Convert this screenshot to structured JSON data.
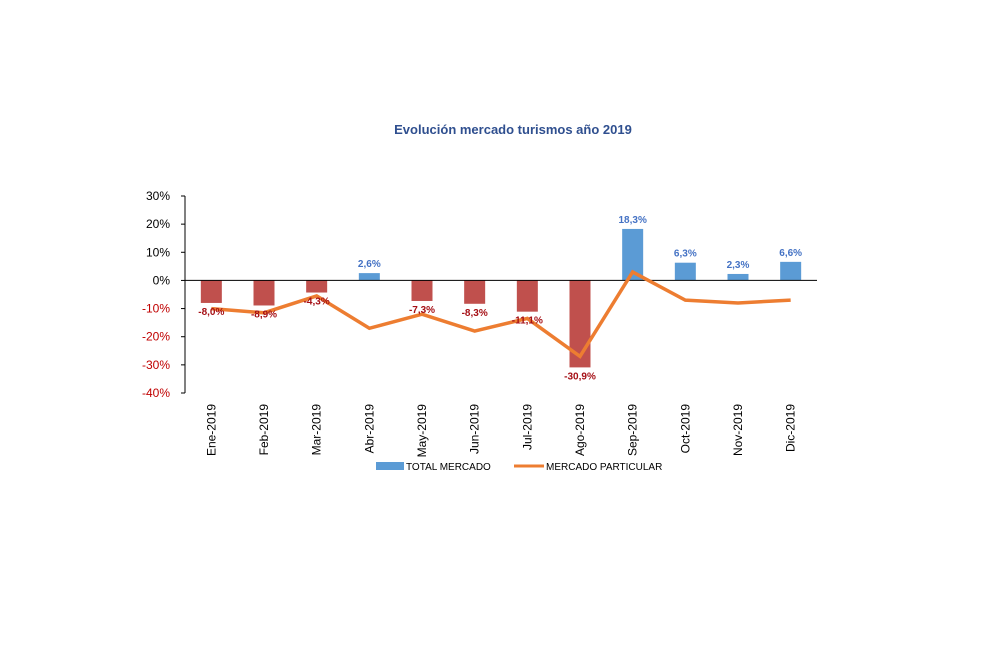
{
  "chart_data": {
    "type": "bar",
    "title": "Evolución mercado turismos año 2019",
    "categories": [
      "Ene-2019",
      "Feb-2019",
      "Mar-2019",
      "Abr-2019",
      "May-2019",
      "Jun-2019",
      "Jul-2019",
      "Ago-2019",
      "Sep-2019",
      "Oct-2019",
      "Nov-2019",
      "Dic-2019"
    ],
    "series": [
      {
        "name": "TOTAL MERCADO",
        "type": "bar",
        "values": [
          -8.0,
          -8.9,
          -4.3,
          2.6,
          -7.3,
          -8.3,
          -11.1,
          -30.9,
          18.3,
          6.3,
          2.3,
          6.6
        ],
        "labels": [
          "-8,0%",
          "-8,9%",
          "-4,3%",
          "2,6%",
          "-7,3%",
          "-8,3%",
          "-11,1%",
          "-30,9%",
          "18,3%",
          "6,3%",
          "2,3%",
          "6,6%"
        ]
      },
      {
        "name": "MERCADO PARTICULAR",
        "type": "line",
        "values": [
          -10.0,
          -11.5,
          -5.5,
          -17.0,
          -12.0,
          -18.0,
          -13.5,
          -27.0,
          3.0,
          -7.0,
          -8.0,
          -7.0
        ]
      }
    ],
    "ylim": [
      -40,
      30
    ],
    "yticks": [
      "30%",
      "20%",
      "10%",
      "0%",
      "-10%",
      "-20%",
      "-30%",
      "-40%"
    ],
    "ytick_values": [
      30,
      20,
      10,
      0,
      -10,
      -20,
      -30,
      -40
    ],
    "grid": false,
    "legend_position": "bottom",
    "colors": {
      "bar_positive": "#5b9bd5",
      "bar_negative": "#c0504d",
      "line": "#ed7d31",
      "title": "#2f4f8f",
      "label_positive": "#4472c4",
      "label_negative": "#a50f15",
      "tick_positive": "#000000",
      "tick_negative": "#c00000"
    }
  }
}
